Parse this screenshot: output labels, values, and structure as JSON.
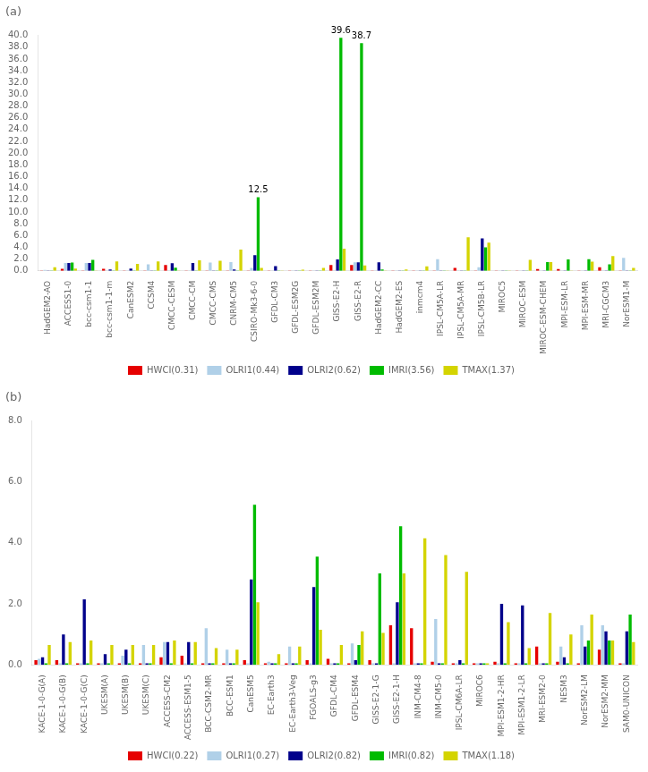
{
  "chart_data": [
    {
      "type": "bar",
      "title": "(a)",
      "categories": [
        "HadGEM2-AO",
        "ACCESS1-0",
        "bcc-csm1-1",
        "bcc-csm1-1-m",
        "CanESM2",
        "CCSM4",
        "CMCC-CESM",
        "CMCC-CM",
        "CMCC-CMS",
        "CNRM-CM5",
        "CSIRO-Mk3-6-0",
        "GFDL-CM3",
        "GFDL-ESM2G",
        "GFDL-ESM2M",
        "GISS-E2-H",
        "GISS-E2-R",
        "HadGEM2-CC",
        "HadGEM2-ES",
        "inmcm4",
        "IPSL-CM5A-LR",
        "IPSL-CM5A-MR",
        "IPSL-CM5B-LR",
        "MIROC5",
        "MIROC-ESM",
        "MIROC-ESM-CHEM",
        "MPI-ESM-LR",
        "MPI-ESM-MR",
        "MRI-CGCM3",
        "NorESM1-M"
      ],
      "series": [
        {
          "name": "HWCI(0.31)",
          "color": "#e60000",
          "values": [
            0.05,
            0.35,
            0.05,
            0.35,
            0.05,
            0.05,
            1.0,
            0.05,
            0.05,
            0.05,
            0.05,
            0.05,
            0.05,
            0.05,
            1.0,
            1.0,
            0.05,
            0.05,
            0.05,
            0.05,
            0.5,
            0.05,
            0.05,
            0.05,
            0.3,
            0.3,
            0.05,
            0.6,
            0.05
          ]
        },
        {
          "name": "OLRI1(0.44)",
          "color": "#b0d0e8",
          "values": [
            0.15,
            1.35,
            1.35,
            0.05,
            0.05,
            1.1,
            0.05,
            0.05,
            1.4,
            1.5,
            0.5,
            0.05,
            0.05,
            0.05,
            0.05,
            1.45,
            0.05,
            0.05,
            0.05,
            2.0,
            0.05,
            0.6,
            0.05,
            0.05,
            0.05,
            0.05,
            0.05,
            0.05,
            2.2
          ]
        },
        {
          "name": "OLRI2(0.62)",
          "color": "#00008b",
          "values": [
            0.05,
            1.35,
            1.35,
            0.25,
            0.4,
            0.05,
            1.3,
            1.35,
            0.05,
            0.25,
            2.65,
            0.8,
            0.05,
            0.05,
            1.95,
            1.45,
            1.45,
            0.05,
            0.05,
            0.05,
            0.05,
            5.5,
            0.05,
            0.05,
            0.05,
            0.05,
            0.05,
            0.05,
            0.05
          ]
        },
        {
          "name": "IMRI(3.56)",
          "color": "#00bb00",
          "values": [
            0.05,
            1.4,
            1.85,
            0.05,
            0.05,
            0.05,
            0.55,
            0.05,
            0.05,
            0.05,
            12.5,
            0.05,
            0.05,
            0.05,
            39.6,
            38.7,
            0.25,
            0.05,
            0.05,
            0.05,
            0.05,
            4.0,
            0.05,
            0.05,
            1.5,
            1.95,
            2.0,
            1.1,
            0.05
          ]
        },
        {
          "name": "TMAX(1.37)",
          "color": "#d4d400",
          "values": [
            0.6,
            0.4,
            0.05,
            1.6,
            1.2,
            1.6,
            0.05,
            1.8,
            1.7,
            3.6,
            0.5,
            0.05,
            0.2,
            0.5,
            3.75,
            0.9,
            0.05,
            0.25,
            0.75,
            0.05,
            5.7,
            4.8,
            0.05,
            1.85,
            1.5,
            0.05,
            1.55,
            2.5,
            0.5
          ]
        }
      ],
      "ylim": [
        0,
        40
      ],
      "yticks": [
        {
          "value": 0,
          "label": "0.0"
        },
        {
          "value": 2,
          "label": "2.0"
        },
        {
          "value": 4,
          "label": "4.0"
        },
        {
          "value": 6,
          "label": "6.0"
        },
        {
          "value": 8,
          "label": "8.0"
        },
        {
          "value": 10,
          "label": "10.0"
        },
        {
          "value": 12,
          "label": "12.0"
        },
        {
          "value": 14,
          "label": "14.0"
        },
        {
          "value": 16,
          "label": "16.0"
        },
        {
          "value": 18,
          "label": "18.0"
        },
        {
          "value": 20,
          "label": "20.0"
        },
        {
          "value": 22,
          "label": "22.0"
        },
        {
          "value": 24,
          "label": "24.0"
        },
        {
          "value": 26,
          "label": "26.0"
        },
        {
          "value": 28,
          "label": "28.0"
        },
        {
          "value": 30,
          "label": "30.0"
        },
        {
          "value": 32,
          "label": "32.0"
        },
        {
          "value": 34,
          "label": "34.0"
        },
        {
          "value": 36,
          "label": "36.0"
        },
        {
          "value": 38,
          "label": "38.0"
        },
        {
          "value": 40,
          "label": "40.0"
        }
      ],
      "grid": false,
      "legend": "bottom",
      "annotations": [
        {
          "text": "12.5",
          "category": "CSIRO-Mk3-6-0",
          "series": "IMRI(3.56)"
        },
        {
          "text": "39.6",
          "category": "GISS-E2-H",
          "series": "IMRI(3.56)"
        },
        {
          "text": "38.7",
          "category": "GISS-E2-R",
          "series": "IMRI(3.56)"
        }
      ]
    },
    {
      "type": "bar",
      "title": "(b)",
      "categories": [
        "KACE-1-0-G(A)",
        "KACE-1-0-G(B)",
        "KACE-1-0-G(C)",
        "UKESM(A)",
        "UKESM(B)",
        "UKESM(C)",
        "ACCESS-CM2",
        "ACCESS-ESM1-5",
        "BCC-CSM2-MR",
        "BCC-ESM1",
        "CanESM5",
        "EC-Earth3",
        "EC-Earth3-Veg",
        "FGOALS-g3",
        "GFDL-CM4",
        "GFDL-ESM4",
        "GISS-E2-1-G",
        "GISS-E2-1-H",
        "INM-CM4-8",
        "INM-CM5-0",
        "IPSL-CM6A-LR",
        "MIROC6",
        "MPI-ESM1-2-HR",
        "MPI-ESM1-2-LR",
        "MRI-ESM2-0",
        "NESM3",
        "NorESM2-LM",
        "NorESM2-MM",
        "SAM0-UNICON"
      ],
      "series": [
        {
          "name": "HWCI(0.22)",
          "color": "#e60000",
          "values": [
            0.15,
            0.15,
            0.05,
            0.05,
            0.05,
            0.05,
            0.25,
            0.3,
            0.05,
            0.05,
            0.15,
            0.05,
            0.05,
            0.15,
            0.2,
            0.05,
            0.15,
            1.3,
            1.2,
            0.1,
            0.05,
            0.05,
            0.1,
            0.05,
            0.6,
            0.1,
            0.05,
            0.5,
            0.05
          ]
        },
        {
          "name": "OLRI1(0.27)",
          "color": "#b0d0e8",
          "values": [
            0.2,
            0.05,
            0.05,
            0.05,
            0.3,
            0.65,
            0.75,
            0.05,
            1.2,
            0.5,
            0.05,
            0.1,
            0.6,
            0.05,
            0.05,
            0.7,
            0.05,
            0.05,
            0.05,
            1.5,
            0.05,
            0.05,
            0.05,
            0.05,
            0.05,
            0.6,
            1.3,
            1.3,
            0.05
          ]
        },
        {
          "name": "OLRI2(0.82)",
          "color": "#00008b",
          "values": [
            0.25,
            1.0,
            2.15,
            0.35,
            0.5,
            0.05,
            0.75,
            0.75,
            0.05,
            0.05,
            2.8,
            0.05,
            0.05,
            2.55,
            0.05,
            0.15,
            0.05,
            2.05,
            0.05,
            0.05,
            0.15,
            0.05,
            2.0,
            1.95,
            0.05,
            0.25,
            0.6,
            1.1,
            1.1
          ]
        },
        {
          "name": "IMRI(0.82)",
          "color": "#00bb00",
          "values": [
            0.05,
            0.05,
            0.05,
            0.05,
            0.05,
            0.05,
            0.05,
            0.05,
            0.05,
            0.05,
            5.25,
            0.05,
            0.05,
            3.55,
            0.05,
            0.65,
            3.0,
            4.55,
            0.05,
            0.05,
            0.05,
            0.05,
            0.05,
            0.05,
            0.05,
            0.05,
            0.8,
            0.8,
            1.65
          ]
        },
        {
          "name": "TMAX(1.18)",
          "color": "#d4d400",
          "values": [
            0.65,
            0.75,
            0.8,
            0.65,
            0.65,
            0.65,
            0.8,
            0.75,
            0.55,
            0.5,
            2.05,
            0.35,
            0.6,
            1.15,
            0.65,
            1.1,
            1.05,
            3.0,
            4.15,
            3.6,
            3.05,
            0.05,
            1.4,
            0.55,
            1.7,
            1.0,
            1.65,
            0.8,
            0.75
          ]
        }
      ],
      "ylim": [
        0,
        8
      ],
      "yticks": [
        {
          "value": 0,
          "label": "0.0"
        },
        {
          "value": 2,
          "label": "2.0"
        },
        {
          "value": 4,
          "label": "4.0"
        },
        {
          "value": 6,
          "label": "6.0"
        },
        {
          "value": 8,
          "label": "8.0"
        }
      ],
      "grid": false,
      "legend": "bottom"
    }
  ]
}
